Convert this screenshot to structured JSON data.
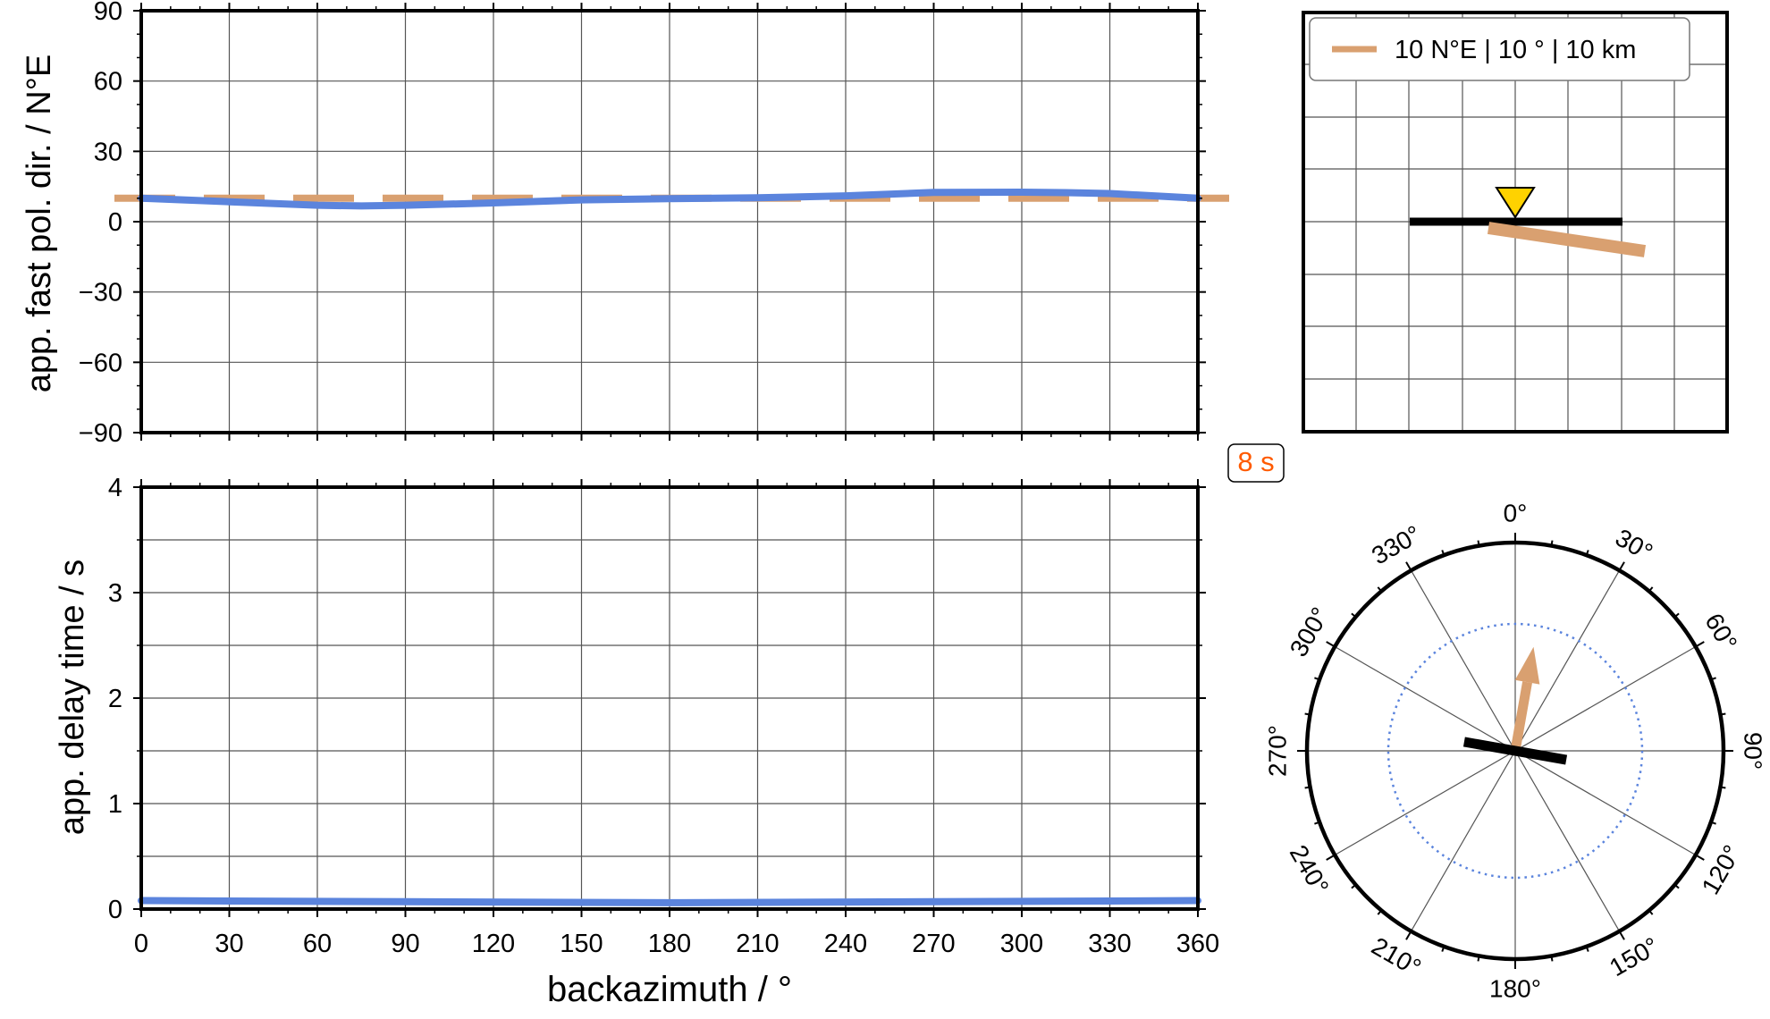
{
  "colors": {
    "model": "#d9a070",
    "observed": "#5b84dd",
    "station": "#ffd200",
    "period_label": "#ff5a00",
    "frame": "#000000",
    "grid": "#555555"
  },
  "period_label": "8 s",
  "legend": {
    "entry": "10 N°E | 10 ° | 10 km",
    "position": "top-right"
  },
  "chart_data": [
    {
      "type": "line",
      "panel": "fast-polarization",
      "xlabel": "",
      "ylabel": "app. fast pol. dir. / N°E",
      "xlim": [
        0,
        360
      ],
      "ylim": [
        -90,
        90
      ],
      "xticks": [
        0,
        30,
        60,
        90,
        120,
        150,
        180,
        210,
        240,
        270,
        300,
        330,
        360
      ],
      "yticks": [
        -90,
        -60,
        -30,
        0,
        30,
        60,
        90
      ],
      "ytick_labels": [
        "−90",
        "−60",
        "−30",
        "0",
        "30",
        "60",
        "90"
      ],
      "grid": true,
      "model_value": 10,
      "x": [
        0,
        30,
        60,
        75,
        90,
        120,
        150,
        180,
        210,
        240,
        270,
        300,
        315,
        330,
        360
      ],
      "y": [
        10,
        8.5,
        7,
        6.7,
        7,
        8,
        9.3,
        9.8,
        10.2,
        11,
        12.5,
        12.6,
        12.4,
        12,
        10
      ]
    },
    {
      "type": "line",
      "panel": "delay-time",
      "xlabel": "backazimuth / °",
      "ylabel": "app. delay time / s",
      "xlim": [
        0,
        360
      ],
      "ylim": [
        0,
        4
      ],
      "xticks": [
        0,
        30,
        60,
        90,
        120,
        150,
        180,
        210,
        240,
        270,
        300,
        330,
        360
      ],
      "yticks": [
        0,
        1,
        2,
        3,
        4
      ],
      "grid": true,
      "x": [
        0,
        90,
        180,
        270,
        360
      ],
      "y": [
        0.08,
        0.07,
        0.06,
        0.07,
        0.08
      ]
    },
    {
      "type": "polar",
      "panel": "backazimuth-rose",
      "angle_labels": [
        "0°",
        "30°",
        "60°",
        "90°",
        "120°",
        "150°",
        "180°",
        "210°",
        "240°",
        "270°",
        "300°",
        "330°"
      ],
      "fast_axis_azimuth": 100,
      "arrow_azimuth": 10
    }
  ]
}
